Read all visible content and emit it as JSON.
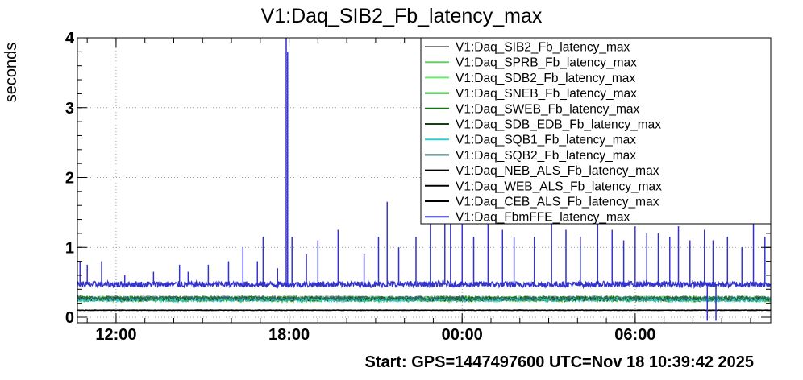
{
  "chart_data": {
    "type": "line",
    "title": "V1:Daq_SIB2_Fb_latency_max",
    "ylabel": "seconds",
    "xlabel": "",
    "footer": "Start: GPS=1447497600 UTC=Nov 18 10:39:42 2025",
    "ylim": [
      0,
      4
    ],
    "xlim_hours": [
      10.66,
      34.7
    ],
    "grid": true,
    "legend_position": "top-right",
    "y_ticks": [
      "0",
      "1",
      "2",
      "3",
      "4"
    ],
    "x_ticks": [
      {
        "label": "12:00",
        "hour": 12
      },
      {
        "label": "18:00",
        "hour": 18
      },
      {
        "label": "00:00",
        "hour": 24
      },
      {
        "label": "06:00",
        "hour": 30
      }
    ],
    "series": [
      {
        "name": "V1:Daq_SIB2_Fb_latency_max",
        "color": "#7f7f7f",
        "baseline": 0.27
      },
      {
        "name": "V1:Daq_SPRB_Fb_latency_max",
        "color": "#66cc66",
        "baseline": 0.27
      },
      {
        "name": "V1:Daq_SDB2_Fb_latency_max",
        "color": "#66ee66",
        "baseline": 0.26
      },
      {
        "name": "V1:Daq_SNEB_Fb_latency_max",
        "color": "#22aa22",
        "baseline": 0.25
      },
      {
        "name": "V1:Daq_SWEB_Fb_latency_max",
        "color": "#117711",
        "baseline": 0.27
      },
      {
        "name": "V1:Daq_SDB_EDB_Fb_latency_max",
        "color": "#114411",
        "baseline": 0.26
      },
      {
        "name": "V1:Daq_SQB1_Fb_latency_max",
        "color": "#33cccc",
        "baseline": 0.25
      },
      {
        "name": "V1:Daq_SQB2_Fb_latency_max",
        "color": "#336666",
        "baseline": 0.27
      },
      {
        "name": "V1:Daq_NEB_ALS_Fb_latency_max",
        "color": "#000000",
        "baseline": 0.1
      },
      {
        "name": "V1:Daq_WEB_ALS_Fb_latency_max",
        "color": "#000000",
        "baseline": 0.1
      },
      {
        "name": "V1:Daq_CEB_ALS_Fb_latency_max",
        "color": "#000000",
        "baseline": 0.1
      },
      {
        "name": "V1:Daq_FbmFFE_latency_max",
        "color": "#3333cc",
        "baseline": 0.47,
        "spikes": [
          {
            "x": 10.75,
            "y": 0.8
          },
          {
            "x": 11.0,
            "y": 0.75
          },
          {
            "x": 11.5,
            "y": 0.8
          },
          {
            "x": 12.3,
            "y": 0.6
          },
          {
            "x": 13.3,
            "y": 0.65
          },
          {
            "x": 14.2,
            "y": 0.75
          },
          {
            "x": 14.5,
            "y": 0.65
          },
          {
            "x": 15.2,
            "y": 0.75
          },
          {
            "x": 15.9,
            "y": 0.8
          },
          {
            "x": 16.4,
            "y": 1.0
          },
          {
            "x": 16.9,
            "y": 0.8
          },
          {
            "x": 17.1,
            "y": 1.15
          },
          {
            "x": 17.6,
            "y": 0.7
          },
          {
            "x": 17.9,
            "y": 4.0
          },
          {
            "x": 17.95,
            "y": 3.8
          },
          {
            "x": 18.1,
            "y": 1.15
          },
          {
            "x": 18.6,
            "y": 0.9
          },
          {
            "x": 19.0,
            "y": 1.1
          },
          {
            "x": 19.7,
            "y": 1.25
          },
          {
            "x": 20.6,
            "y": 0.9
          },
          {
            "x": 21.1,
            "y": 1.15
          },
          {
            "x": 21.4,
            "y": 1.65
          },
          {
            "x": 21.8,
            "y": 1.0
          },
          {
            "x": 22.4,
            "y": 1.15
          },
          {
            "x": 22.9,
            "y": 1.35
          },
          {
            "x": 23.4,
            "y": 1.5
          },
          {
            "x": 23.6,
            "y": 1.4
          },
          {
            "x": 24.0,
            "y": 1.35
          },
          {
            "x": 24.4,
            "y": 1.15
          },
          {
            "x": 24.9,
            "y": 1.35
          },
          {
            "x": 25.4,
            "y": 1.25
          },
          {
            "x": 25.8,
            "y": 1.15
          },
          {
            "x": 26.5,
            "y": 1.15
          },
          {
            "x": 27.1,
            "y": 1.35
          },
          {
            "x": 27.6,
            "y": 1.25
          },
          {
            "x": 28.1,
            "y": 1.15
          },
          {
            "x": 28.7,
            "y": 1.35
          },
          {
            "x": 29.2,
            "y": 1.25
          },
          {
            "x": 29.6,
            "y": 1.1
          },
          {
            "x": 30.0,
            "y": 1.3
          },
          {
            "x": 30.4,
            "y": 1.2
          },
          {
            "x": 30.8,
            "y": 1.2
          },
          {
            "x": 31.2,
            "y": 1.15
          },
          {
            "x": 31.5,
            "y": 1.3
          },
          {
            "x": 31.9,
            "y": 1.1
          },
          {
            "x": 32.4,
            "y": 1.25
          },
          {
            "x": 32.7,
            "y": 1.1
          },
          {
            "x": 33.2,
            "y": 1.15
          },
          {
            "x": 33.7,
            "y": 1.0
          },
          {
            "x": 34.1,
            "y": 1.35
          },
          {
            "x": 34.5,
            "y": 1.15
          }
        ],
        "dips": [
          {
            "x": 32.5,
            "y": -0.05
          },
          {
            "x": 32.8,
            "y": -0.05
          }
        ]
      }
    ]
  }
}
